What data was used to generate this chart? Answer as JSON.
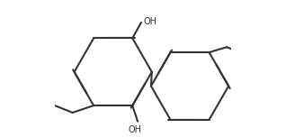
{
  "bg_color": "#ffffff",
  "line_color": "#333333",
  "line_width": 1.5,
  "fig_width": 3.18,
  "fig_height": 1.52,
  "dpi": 100
}
